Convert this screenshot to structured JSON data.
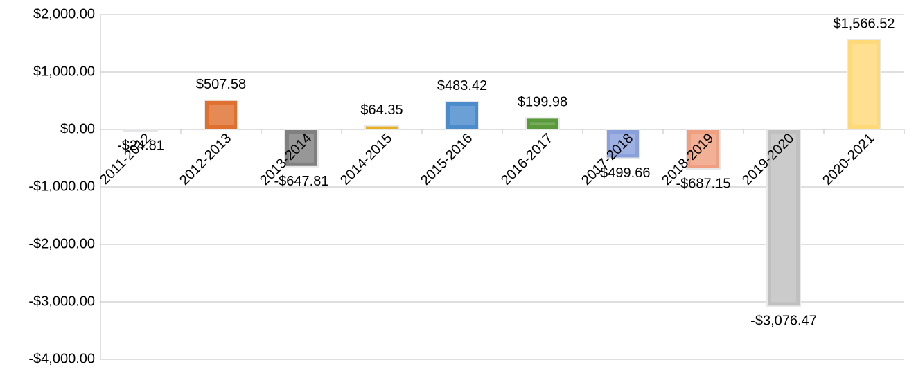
{
  "chart_data": {
    "type": "bar",
    "categories": [
      "2011-2012",
      "2012-2013",
      "2013-2014",
      "2014-2015",
      "2015-2016",
      "2016-2017",
      "2017-2018",
      "2018-2019",
      "2019-2020",
      "2020-2021"
    ],
    "values": [
      -24.81,
      507.58,
      -647.81,
      64.35,
      483.42,
      199.98,
      -499.66,
      -687.15,
      -3076.47,
      1566.52
    ],
    "value_labels": [
      "-$24.81",
      "$507.58",
      "-$647.81",
      "$64.35",
      "$483.42",
      "$199.98",
      "-$499.66",
      "-$687.15",
      "-$3,076.47",
      "$1,566.52"
    ],
    "colors": [
      "#7f9bd6",
      "#e07030",
      "#808080",
      "#e8b020",
      "#4a8ccc",
      "#5a9a3a",
      "#8aa0dc",
      "#f0a080",
      "#c0c0c0",
      "#ffd878"
    ],
    "ylim": [
      -4000,
      2000
    ],
    "yticks": [
      {
        "value": -4000,
        "label": "-$4,000.00"
      },
      {
        "value": -3000,
        "label": "-$3,000.00"
      },
      {
        "value": -2000,
        "label": "-$2,000.00"
      },
      {
        "value": -1000,
        "label": "-$1,000.00"
      },
      {
        "value": 0,
        "label": "$0.00"
      },
      {
        "value": 1000,
        "label": "$1,000.00"
      },
      {
        "value": 2000,
        "label": "$2,000.00"
      }
    ],
    "grid": true
  }
}
